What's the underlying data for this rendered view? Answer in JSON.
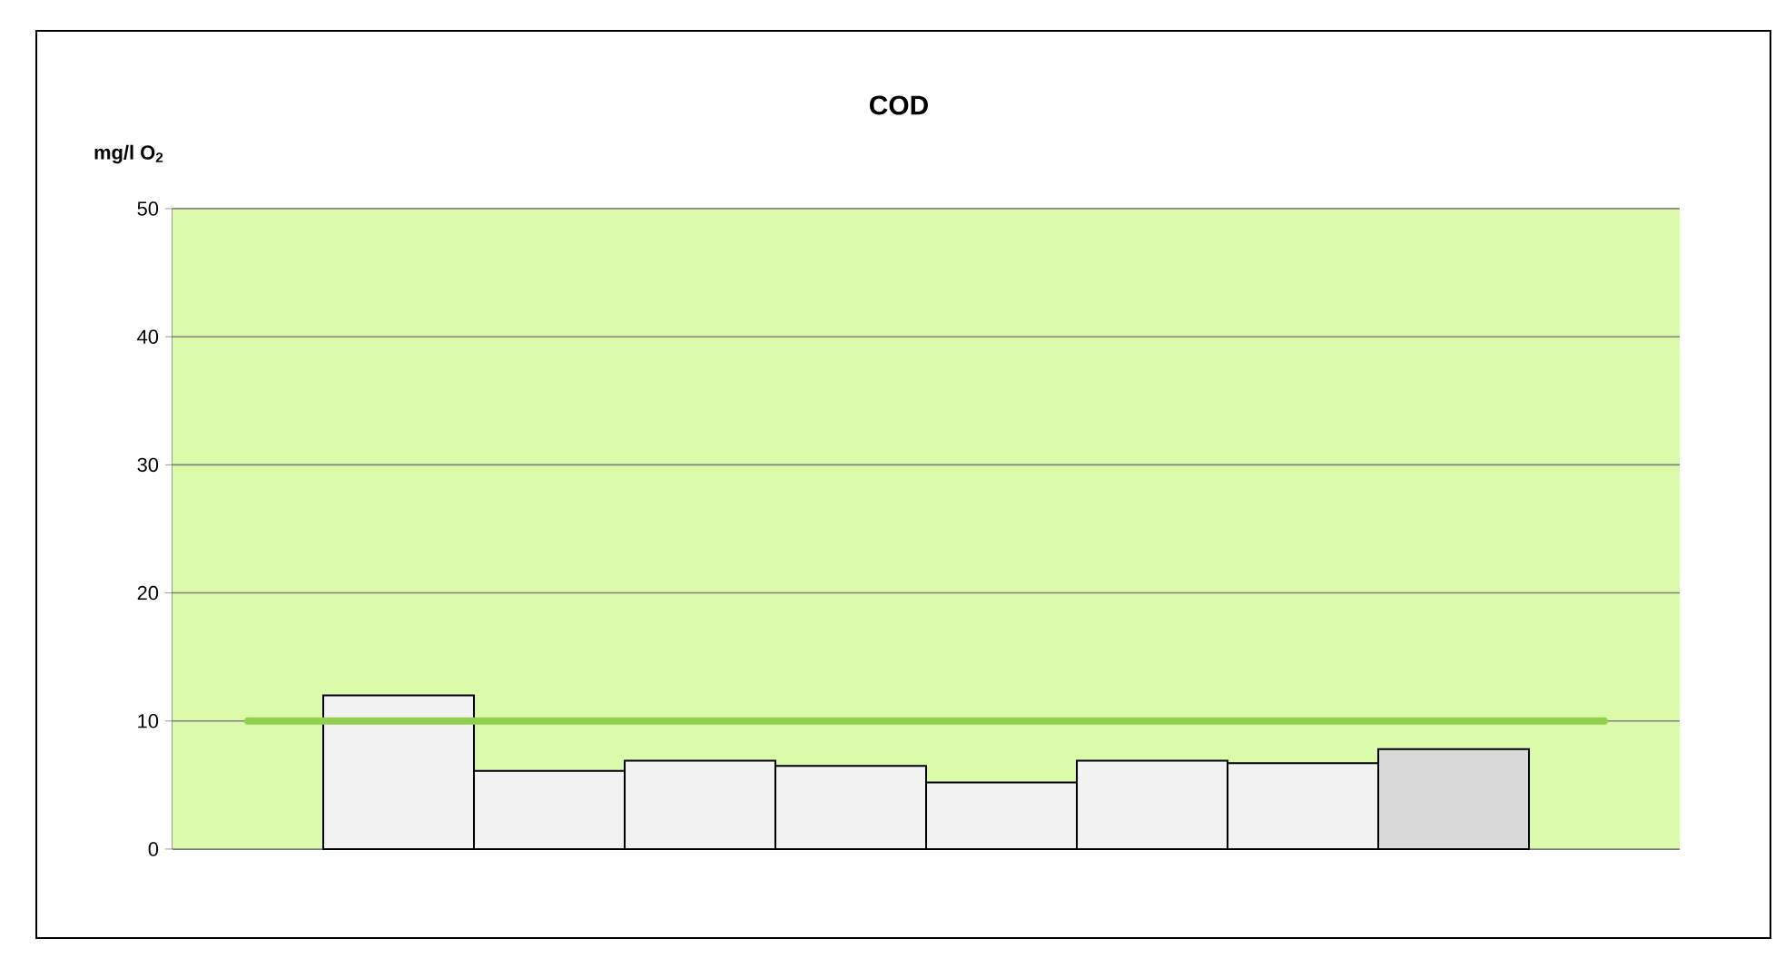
{
  "chart_data": {
    "type": "bar",
    "title": "COD",
    "ylabel": "mg/l O$_{2}$",
    "categories": [
      null,
      null,
      null,
      null,
      null,
      null,
      null,
      null,
      null,
      null
    ],
    "values": [
      null,
      12,
      6.1,
      6.9,
      6.5,
      5.2,
      6.9,
      6.7,
      7.8,
      null
    ],
    "colors": [
      "#f2f2f2",
      "#f2f2f2",
      "#f2f2f2",
      "#f2f2f2",
      "#f2f2f2",
      "#f2f2f2",
      "#f2f2f2",
      "#f2f2f2",
      "#d9d9d9",
      "#f2f2f2"
    ],
    "ylim": [
      0,
      50
    ],
    "yticks": [
      0,
      10,
      20,
      30,
      40,
      50
    ],
    "grid": "y",
    "tick_labels": "y",
    "bands": [
      {
        "axis": "y",
        "from": 0,
        "to": 50,
        "color": "#dcfbaa"
      }
    ],
    "ref_lines": [
      {
        "axis": "y",
        "value": 10,
        "color": "#92d050"
      }
    ]
  }
}
